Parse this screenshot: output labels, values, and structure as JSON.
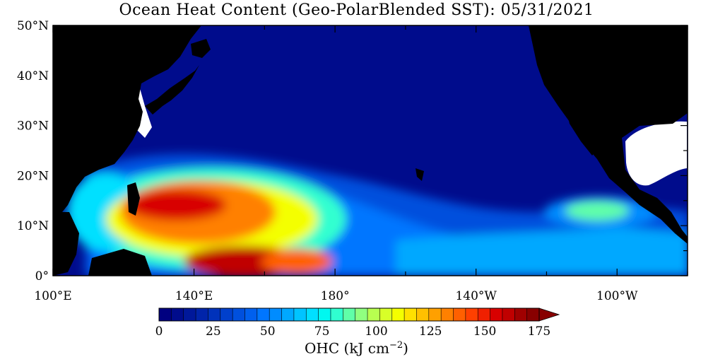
{
  "title": "Ocean Heat Content (Geo-PolarBlended SST): 05/31/2021",
  "map": {
    "region": "North Pacific",
    "lon_range": [
      100,
      280
    ],
    "lat_range": [
      0,
      50
    ],
    "y_ticks": [
      "0°",
      "10°N",
      "20°N",
      "30°N",
      "40°N",
      "50°N"
    ],
    "x_ticks": [
      "100°E",
      "140°E",
      "180°",
      "140°W",
      "100°W"
    ],
    "land_color": "#000000",
    "missing_color": "#ffffff",
    "ocean_base_color": "#000c8c"
  },
  "colorbar": {
    "ticks": [
      "0",
      "25",
      "50",
      "75",
      "100",
      "125",
      "150",
      "175"
    ],
    "label_main": "OHC (kJ cm",
    "label_exp": "−2",
    "label_close": ")",
    "min": 0,
    "max": 175,
    "step": 5,
    "colors": [
      "#000080",
      "#000c8c",
      "#00189a",
      "#0024aa",
      "#0032bb",
      "#0040cc",
      "#0050dd",
      "#0060ee",
      "#0076ff",
      "#008cff",
      "#00a8ff",
      "#00c4ff",
      "#00e0ff",
      "#00f8f0",
      "#30ffd0",
      "#60ffa8",
      "#90ff80",
      "#b8ff50",
      "#d8ff28",
      "#f4ff00",
      "#ffe000",
      "#ffc000",
      "#ffa000",
      "#ff8000",
      "#ff6000",
      "#ff4000",
      "#f02000",
      "#d80000",
      "#c00000",
      "#a00000",
      "#880000"
    ],
    "overflow_color": "#880000"
  }
}
